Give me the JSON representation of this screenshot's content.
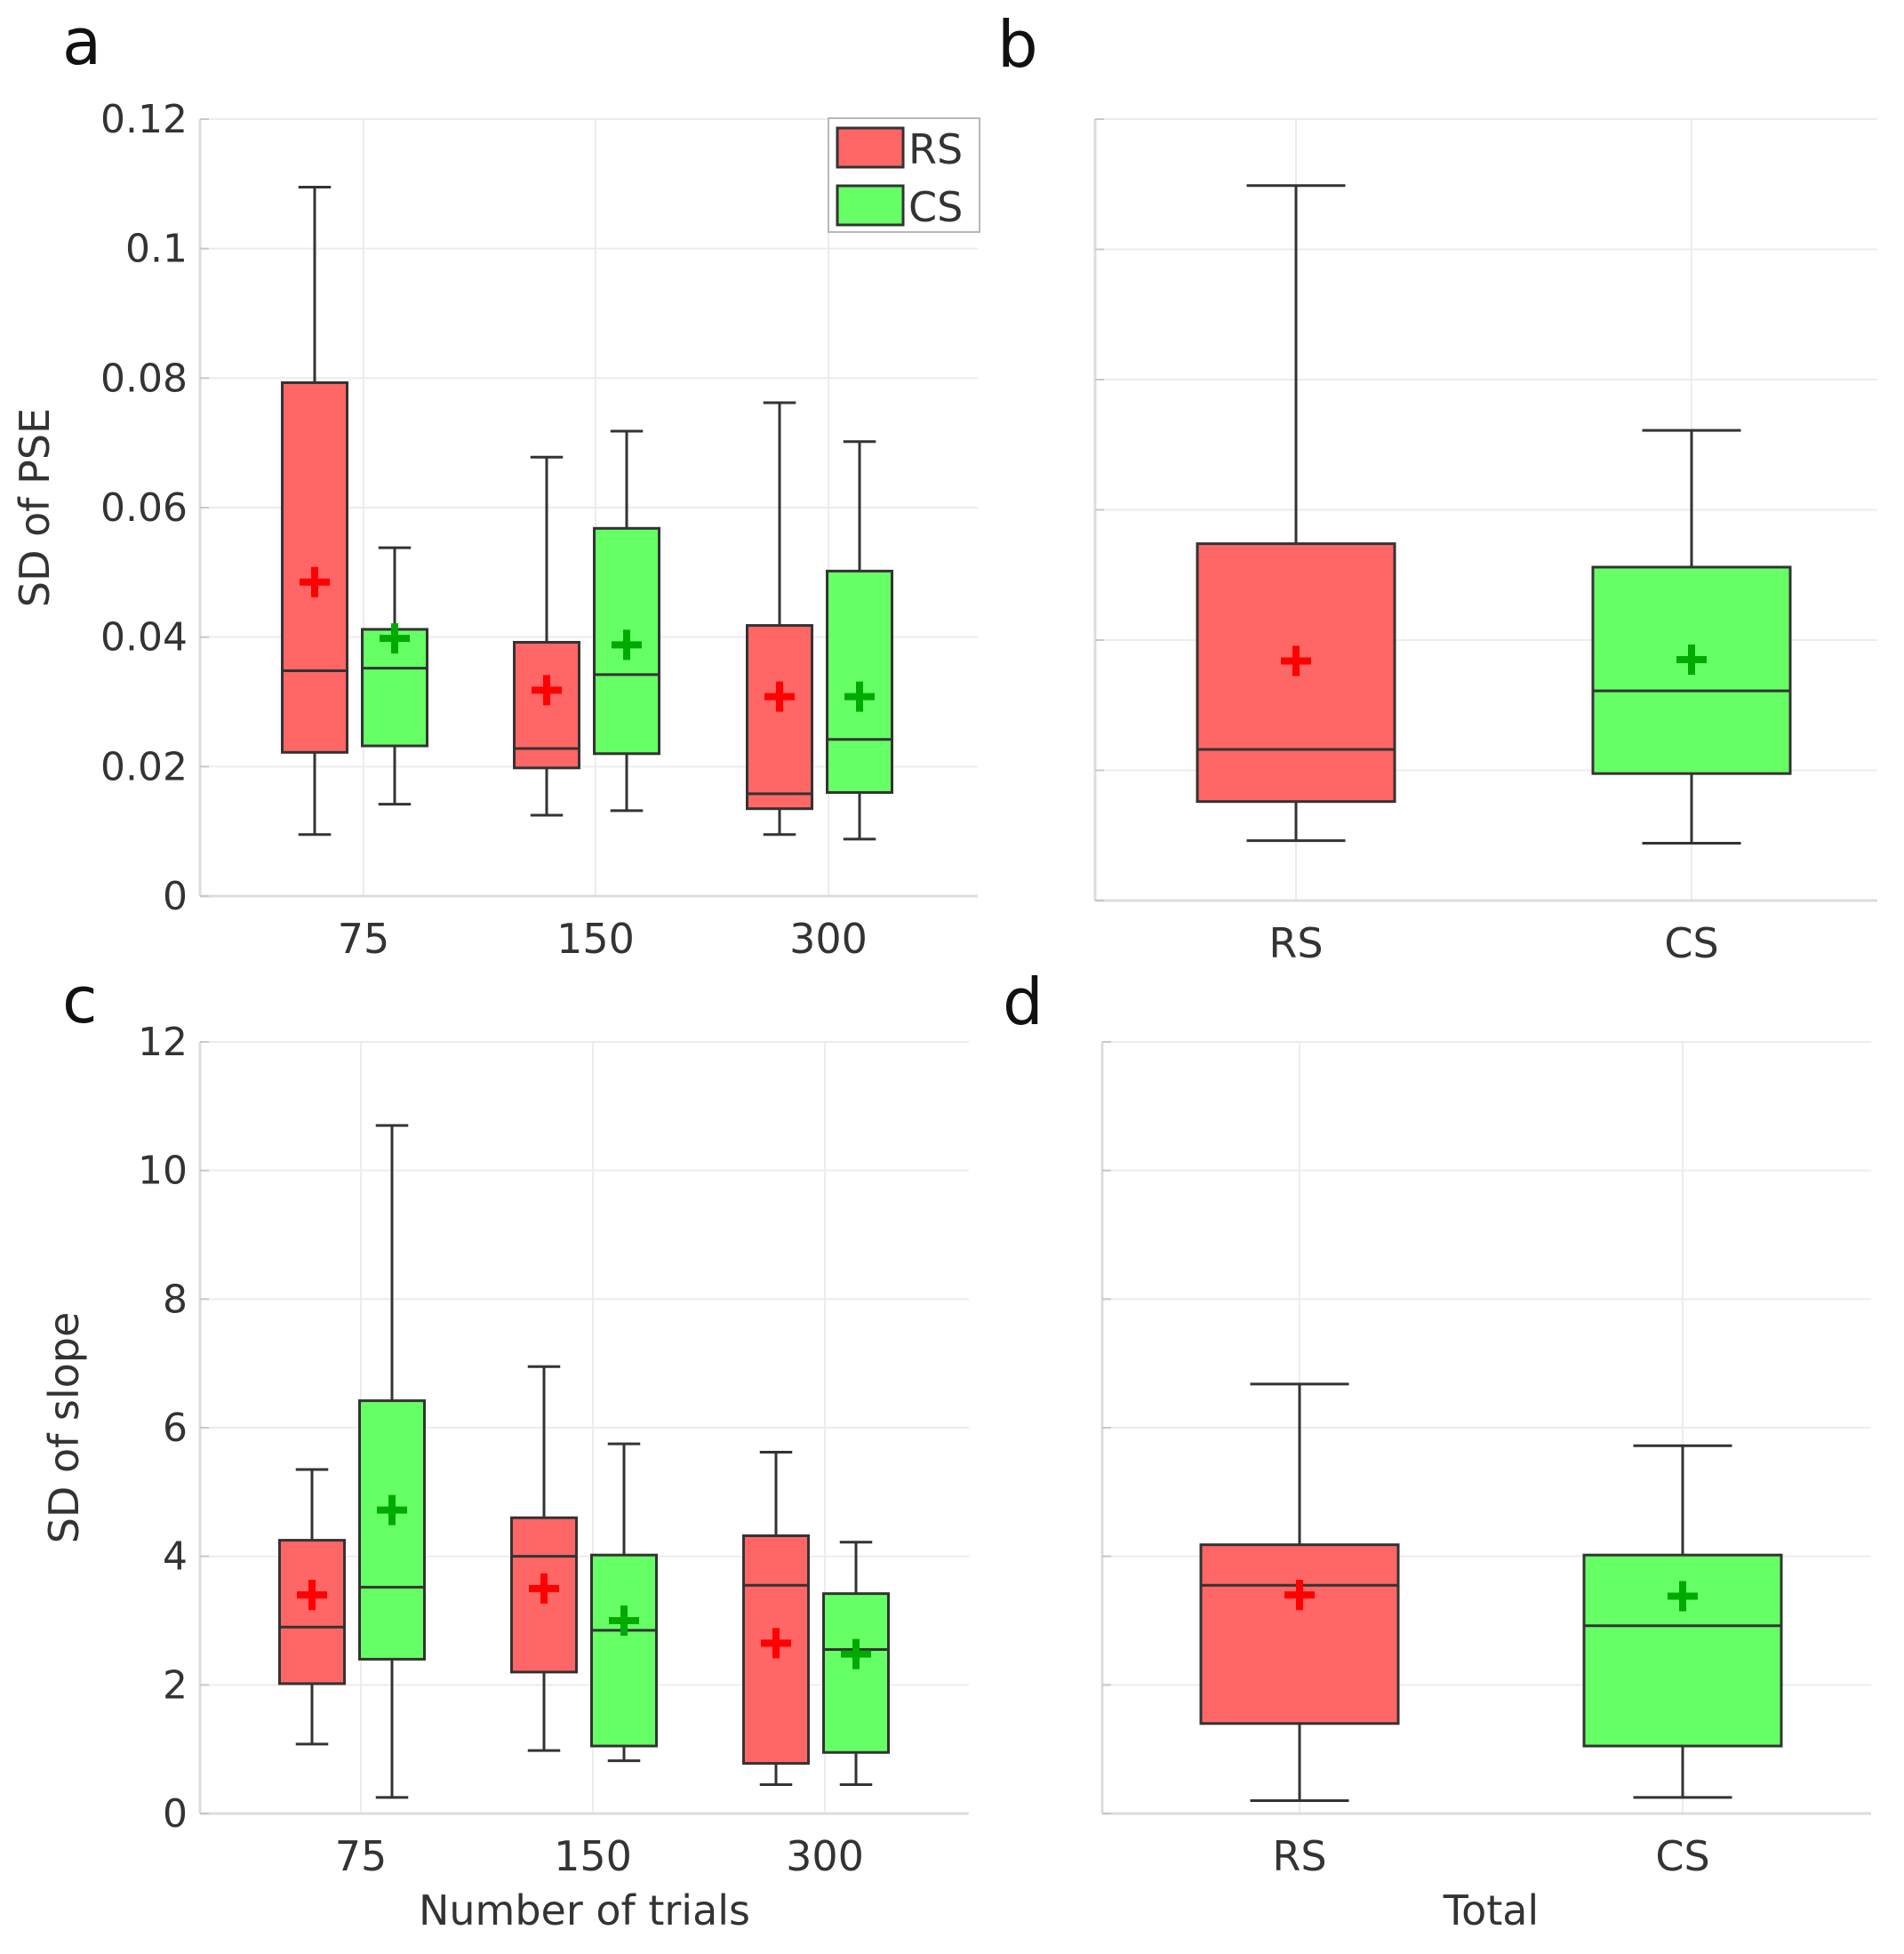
{
  "colors": {
    "RS": "#ff6666",
    "CS": "#66ff66",
    "RS_mean": "#ff0000",
    "CS_mean": "#00aa00",
    "edge": "#333333",
    "grid": "#ececec",
    "axis": "#dcdcdc",
    "text": "#333333"
  },
  "legend": {
    "entries": [
      {
        "label": "RS",
        "color": "#ff6666"
      },
      {
        "label": "CS",
        "color": "#66ff66"
      }
    ],
    "placement": "top-right of panel a"
  },
  "chart_data": [
    {
      "panel": "a",
      "type": "box",
      "categories": [
        "75",
        "150",
        "300"
      ],
      "xlabel": "",
      "ylabel": "SD of PSE",
      "ylim": [
        0,
        0.12
      ],
      "yticks": [
        0,
        0.02,
        0.04,
        0.06,
        0.08,
        0.1,
        0.12
      ],
      "ytick_labels": [
        "0",
        "0.02",
        "0.04",
        "0.06",
        "0.08",
        "0.1",
        "0.12"
      ],
      "grid": true,
      "series": [
        {
          "name": "RS",
          "boxes": [
            {
              "category": "75",
              "whisker_low": 0.0095,
              "q1": 0.0222,
              "median": 0.0348,
              "q3": 0.0793,
              "whisker_high": 0.1095,
              "mean": 0.0485
            },
            {
              "category": "150",
              "whisker_low": 0.0125,
              "q1": 0.0198,
              "median": 0.0228,
              "q3": 0.0392,
              "whisker_high": 0.0678,
              "mean": 0.0318
            },
            {
              "category": "300",
              "whisker_low": 0.0095,
              "q1": 0.0135,
              "median": 0.0158,
              "q3": 0.0418,
              "whisker_high": 0.0762,
              "mean": 0.0308
            }
          ]
        },
        {
          "name": "CS",
          "boxes": [
            {
              "category": "75",
              "whisker_low": 0.0142,
              "q1": 0.0232,
              "median": 0.0352,
              "q3": 0.0412,
              "whisker_high": 0.0538,
              "mean": 0.0398
            },
            {
              "category": "150",
              "whisker_low": 0.0132,
              "q1": 0.022,
              "median": 0.0342,
              "q3": 0.0568,
              "whisker_high": 0.0718,
              "mean": 0.0388
            },
            {
              "category": "300",
              "whisker_low": 0.0088,
              "q1": 0.016,
              "median": 0.0242,
              "q3": 0.0502,
              "whisker_high": 0.0702,
              "mean": 0.0308
            }
          ]
        }
      ]
    },
    {
      "panel": "b",
      "type": "box",
      "categories": [
        "RS",
        "CS"
      ],
      "xlabel": "",
      "ylabel": "",
      "ylim": [
        0,
        0.12
      ],
      "yticks": [
        0,
        0.02,
        0.04,
        0.06,
        0.08,
        0.1,
        0.12
      ],
      "ytick_labels": [],
      "grid": true,
      "series": [
        {
          "name": "RS",
          "boxes": [
            {
              "category": "RS",
              "whisker_low": 0.0092,
              "q1": 0.0152,
              "median": 0.0232,
              "q3": 0.0548,
              "whisker_high": 0.1098,
              "mean": 0.0368
            }
          ]
        },
        {
          "name": "CS",
          "boxes": [
            {
              "category": "CS",
              "whisker_low": 0.0088,
              "q1": 0.0195,
              "median": 0.0322,
              "q3": 0.0512,
              "whisker_high": 0.0722,
              "mean": 0.037
            }
          ]
        }
      ]
    },
    {
      "panel": "c",
      "type": "box",
      "categories": [
        "75",
        "150",
        "300"
      ],
      "xlabel": "Number of trials",
      "ylabel": "SD of slope",
      "ylim": [
        0,
        12
      ],
      "yticks": [
        0,
        2,
        4,
        6,
        8,
        10,
        12
      ],
      "ytick_labels": [
        "0",
        "2",
        "4",
        "6",
        "8",
        "10",
        "12"
      ],
      "grid": true,
      "series": [
        {
          "name": "RS",
          "boxes": [
            {
              "category": "75",
              "whisker_low": 1.08,
              "q1": 2.02,
              "median": 2.9,
              "q3": 4.25,
              "whisker_high": 5.35,
              "mean": 3.4
            },
            {
              "category": "150",
              "whisker_low": 0.98,
              "q1": 2.2,
              "median": 4.0,
              "q3": 4.6,
              "whisker_high": 6.95,
              "mean": 3.5
            },
            {
              "category": "300",
              "whisker_low": 0.45,
              "q1": 0.78,
              "median": 3.55,
              "q3": 4.32,
              "whisker_high": 5.62,
              "mean": 2.65
            }
          ]
        },
        {
          "name": "CS",
          "boxes": [
            {
              "category": "75",
              "whisker_low": 0.25,
              "q1": 2.4,
              "median": 3.52,
              "q3": 6.42,
              "whisker_high": 10.7,
              "mean": 4.72
            },
            {
              "category": "150",
              "whisker_low": 0.82,
              "q1": 1.05,
              "median": 2.85,
              "q3": 4.02,
              "whisker_high": 5.75,
              "mean": 3.0
            },
            {
              "category": "300",
              "whisker_low": 0.45,
              "q1": 0.95,
              "median": 2.55,
              "q3": 3.42,
              "whisker_high": 4.22,
              "mean": 2.48
            }
          ]
        }
      ]
    },
    {
      "panel": "d",
      "type": "box",
      "categories": [
        "RS",
        "CS"
      ],
      "xlabel": "Total",
      "ylabel": "",
      "ylim": [
        0,
        12
      ],
      "yticks": [
        0,
        2,
        4,
        6,
        8,
        10,
        12
      ],
      "ytick_labels": [],
      "grid": true,
      "series": [
        {
          "name": "RS",
          "boxes": [
            {
              "category": "RS",
              "whisker_low": 0.2,
              "q1": 1.4,
              "median": 3.55,
              "q3": 4.18,
              "whisker_high": 6.68,
              "mean": 3.4
            }
          ]
        },
        {
          "name": "CS",
          "boxes": [
            {
              "category": "CS",
              "whisker_low": 0.25,
              "q1": 1.05,
              "median": 2.92,
              "q3": 4.02,
              "whisker_high": 5.72,
              "mean": 3.38
            }
          ]
        }
      ]
    }
  ]
}
